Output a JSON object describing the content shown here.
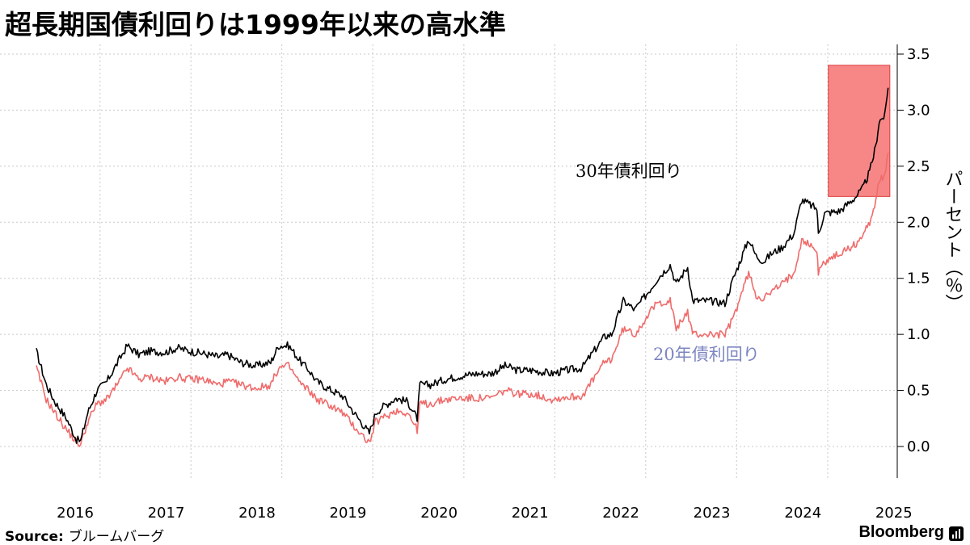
{
  "header": {
    "title": "超長期国債利回りは1999年以来の高水準"
  },
  "footer": {
    "source_label": "Source:",
    "source_text": "ブルームバーグ",
    "brand": "Bloomberg",
    "brand_icon": "bloomberg-terminal-icon"
  },
  "colors": {
    "series_30y": "#000000",
    "series_20y": "#f06b6b",
    "label_20y": "#7e86c2",
    "highlight_fill": "#f78787",
    "highlight_stroke": "#e03a3a",
    "grid": "#c8c8c8"
  },
  "chart_data": {
    "type": "line",
    "xlabel": "",
    "ylabel": "パーセント（％）",
    "x_range": [
      "2016-01-01",
      "2025-06-15"
    ],
    "ylim": [
      -0.3,
      3.6
    ],
    "x_ticks": [
      "2016",
      "2017",
      "2018",
      "2019",
      "2020",
      "2021",
      "2022",
      "2023",
      "2024",
      "2025"
    ],
    "y_ticks": [
      "0.0",
      "0.5",
      "1.0",
      "1.5",
      "2.0",
      "2.5",
      "3.0",
      "3.5"
    ],
    "grid": "dotted",
    "annotations": [
      {
        "type": "highlight-box",
        "x_start": "2024-09-15",
        "x_end": "2025-05-20",
        "y_start": 2.23,
        "y_end": 3.4
      }
    ],
    "series": [
      {
        "name": "30年債利回り",
        "x": [
          "2016-01-01",
          "2016-02-10",
          "2016-03-15",
          "2016-05-01",
          "2016-06-10",
          "2016-06-27",
          "2016-07-25",
          "2016-08-31",
          "2016-10-10",
          "2016-11-30",
          "2016-12-31",
          "2017-02-15",
          "2017-04-01",
          "2017-06-01",
          "2017-07-20",
          "2017-09-08",
          "2017-10-30",
          "2017-12-31",
          "2018-02-06",
          "2018-04-01",
          "2018-06-01",
          "2018-07-30",
          "2018-08-31",
          "2018-10-10",
          "2018-11-30",
          "2018-12-31",
          "2019-01-31",
          "2019-03-15",
          "2019-05-15",
          "2019-06-30",
          "2019-08-30",
          "2019-09-25",
          "2019-10-20",
          "2019-12-15",
          "2020-01-31",
          "2020-03-09",
          "2020-03-20",
          "2020-05-01",
          "2020-07-01",
          "2020-09-01",
          "2020-11-01",
          "2020-12-31",
          "2021-02-25",
          "2021-04-15",
          "2021-06-15",
          "2021-08-31",
          "2021-10-31",
          "2021-12-31",
          "2022-01-31",
          "2022-03-31",
          "2022-04-29",
          "2022-06-15",
          "2022-07-31",
          "2022-09-30",
          "2022-10-31",
          "2022-12-20",
          "2023-01-13",
          "2023-02-28",
          "2023-03-20",
          "2023-05-15",
          "2023-07-28",
          "2023-08-31",
          "2023-10-31",
          "2023-11-30",
          "2023-12-31",
          "2024-01-31",
          "2024-03-15",
          "2024-04-30",
          "2024-05-31",
          "2024-07-31",
          "2024-08-06",
          "2024-08-31",
          "2024-10-31",
          "2024-12-31",
          "2025-01-31",
          "2025-02-28",
          "2025-03-25",
          "2025-04-07",
          "2025-04-30",
          "2025-05-13"
        ],
        "values": [
          0.85,
          0.55,
          0.4,
          0.25,
          0.06,
          0.05,
          0.3,
          0.5,
          0.58,
          0.78,
          0.9,
          0.82,
          0.85,
          0.84,
          0.88,
          0.85,
          0.83,
          0.8,
          0.82,
          0.75,
          0.72,
          0.75,
          0.9,
          0.9,
          0.75,
          0.68,
          0.58,
          0.52,
          0.45,
          0.3,
          0.12,
          0.3,
          0.35,
          0.43,
          0.4,
          0.25,
          0.55,
          0.55,
          0.6,
          0.63,
          0.65,
          0.65,
          0.72,
          0.68,
          0.68,
          0.65,
          0.68,
          0.7,
          0.8,
          0.98,
          1.0,
          1.3,
          1.22,
          1.4,
          1.5,
          1.62,
          1.45,
          1.6,
          1.3,
          1.3,
          1.28,
          1.5,
          1.85,
          1.7,
          1.65,
          1.72,
          1.78,
          1.9,
          2.2,
          2.12,
          1.9,
          2.08,
          2.1,
          2.22,
          2.3,
          2.45,
          2.68,
          2.9,
          2.95,
          3.2
        ]
      },
      {
        "name": "20年債利回り",
        "x": [
          "2016-01-01",
          "2016-02-10",
          "2016-03-15",
          "2016-05-01",
          "2016-06-10",
          "2016-06-27",
          "2016-07-25",
          "2016-08-31",
          "2016-10-10",
          "2016-11-30",
          "2016-12-31",
          "2017-02-15",
          "2017-04-01",
          "2017-06-01",
          "2017-07-20",
          "2017-09-08",
          "2017-10-30",
          "2017-12-31",
          "2018-02-06",
          "2018-04-01",
          "2018-06-01",
          "2018-07-30",
          "2018-08-31",
          "2018-10-10",
          "2018-11-30",
          "2018-12-31",
          "2019-01-31",
          "2019-03-15",
          "2019-05-15",
          "2019-06-30",
          "2019-08-30",
          "2019-09-25",
          "2019-10-20",
          "2019-12-15",
          "2020-01-31",
          "2020-03-09",
          "2020-03-20",
          "2020-05-01",
          "2020-07-01",
          "2020-09-01",
          "2020-11-01",
          "2020-12-31",
          "2021-02-25",
          "2021-04-15",
          "2021-06-15",
          "2021-08-31",
          "2021-10-31",
          "2021-12-31",
          "2022-01-31",
          "2022-03-31",
          "2022-04-29",
          "2022-06-15",
          "2022-07-31",
          "2022-09-30",
          "2022-10-31",
          "2022-12-20",
          "2023-01-13",
          "2023-02-28",
          "2023-03-20",
          "2023-05-15",
          "2023-07-28",
          "2023-08-31",
          "2023-10-31",
          "2023-11-30",
          "2023-12-31",
          "2024-01-31",
          "2024-03-15",
          "2024-04-30",
          "2024-05-31",
          "2024-07-31",
          "2024-08-06",
          "2024-08-31",
          "2024-10-31",
          "2024-12-31",
          "2025-01-31",
          "2025-02-28",
          "2025-03-25",
          "2025-04-07",
          "2025-04-30",
          "2025-05-13"
        ],
        "values": [
          0.7,
          0.42,
          0.3,
          0.15,
          0.04,
          0.02,
          0.22,
          0.38,
          0.42,
          0.58,
          0.7,
          0.6,
          0.62,
          0.58,
          0.62,
          0.6,
          0.6,
          0.55,
          0.58,
          0.55,
          0.52,
          0.55,
          0.7,
          0.72,
          0.55,
          0.5,
          0.42,
          0.38,
          0.3,
          0.18,
          0.03,
          0.22,
          0.25,
          0.32,
          0.3,
          0.15,
          0.38,
          0.38,
          0.42,
          0.43,
          0.43,
          0.43,
          0.5,
          0.47,
          0.47,
          0.42,
          0.44,
          0.45,
          0.55,
          0.75,
          0.78,
          1.05,
          1.0,
          1.2,
          1.28,
          1.3,
          1.05,
          1.2,
          1.0,
          1.0,
          1.0,
          1.15,
          1.55,
          1.35,
          1.32,
          1.38,
          1.45,
          1.55,
          1.85,
          1.75,
          1.55,
          1.65,
          1.72,
          1.8,
          1.88,
          2.0,
          2.2,
          2.38,
          2.4,
          2.62
        ]
      }
    ]
  }
}
